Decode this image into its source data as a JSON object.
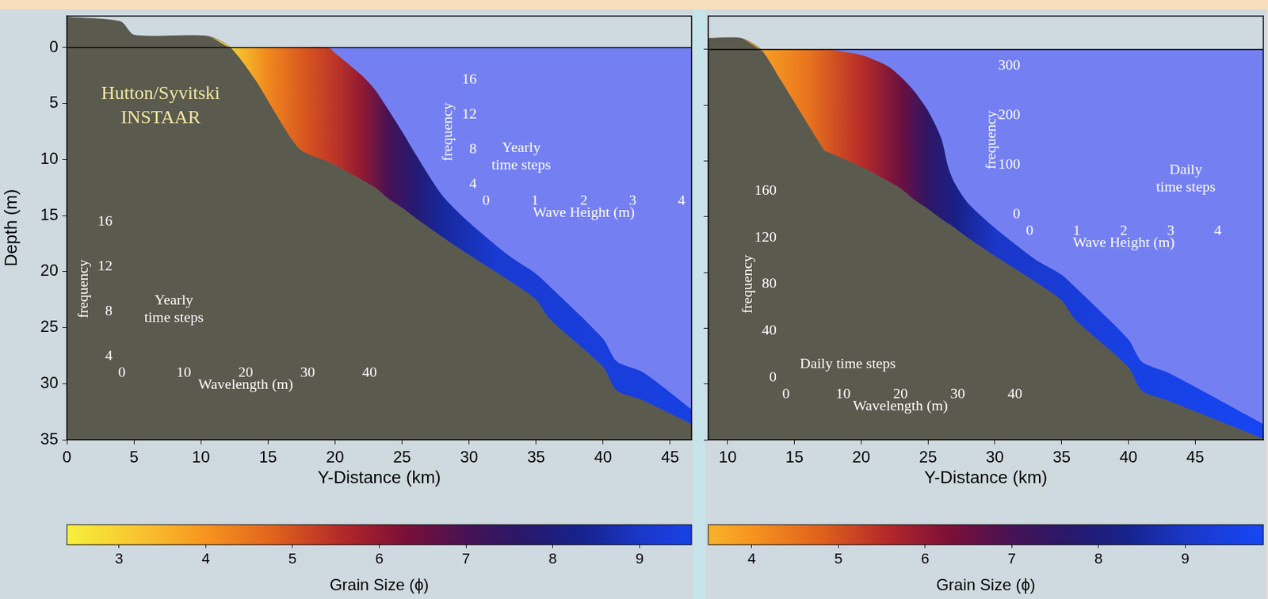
{
  "chart_data": [
    {
      "type": "area",
      "xlabel": "Y-Distance (km)",
      "ylabel": "Depth (m)",
      "xlim": [
        0,
        46.6
      ],
      "xticks": [
        0,
        5,
        10,
        15,
        20,
        25,
        30,
        35,
        40,
        45
      ],
      "ylim": [
        35,
        -2.8
      ],
      "yticks": [
        0,
        5,
        10,
        15,
        20,
        25,
        30,
        35
      ],
      "grid": false,
      "sea_level": 0,
      "x": [
        0,
        4,
        5,
        10.5,
        12.2,
        14,
        17.3,
        19.5,
        20,
        22,
        23,
        24,
        25,
        26,
        28,
        30,
        33,
        35,
        36,
        40,
        41,
        43,
        46.6
      ],
      "series": [
        {
          "values": [
            -2.7,
            -2.3,
            -1.1,
            -1,
            0,
            0,
            0,
            0,
            0.5,
            2.5,
            3.8,
            5.6,
            7.5,
            9.5,
            13.2,
            15.6,
            18.6,
            20.2,
            21.3,
            26,
            28,
            29,
            32.3
          ]
        },
        {
          "values": [
            -2.7,
            -2.3,
            -1.1,
            -1,
            0,
            2.8,
            9,
            10.2,
            10.5,
            11.8,
            12.5,
            13.5,
            14.3,
            15.2,
            16.9,
            18.5,
            20.8,
            22.5,
            24.2,
            28.5,
            30.6,
            31.5,
            33.6
          ],
          "color": "#5b5a4f"
        }
      ],
      "grain_size": {
        "x": [
          12.2,
          15,
          18,
          20,
          22,
          24,
          26,
          28,
          32,
          46.6
        ],
        "values": [
          3,
          4.2,
          5,
          5.4,
          6,
          7,
          7.8,
          8.5,
          9.2,
          9.5
        ]
      },
      "colorbar": {
        "label": "Grain Size (ϕ)",
        "lim": [
          2.4,
          9.6
        ],
        "ticks": [
          3,
          4,
          5,
          6,
          7,
          8,
          9
        ]
      },
      "annotations": [
        "Hutton/Syvitski",
        "INSTAAR"
      ],
      "insets": [
        {
          "type": "histogram",
          "title": "Yearly time steps",
          "xlabel": "Wave Height (m)",
          "ylabel": "frequency",
          "xlim": [
            0,
            4
          ],
          "xticks": [
            0,
            1,
            2,
            3,
            4
          ],
          "ylim": [
            4,
            16
          ],
          "yticks": [
            4,
            8,
            12,
            16
          ]
        },
        {
          "type": "histogram",
          "title": "Yearly time steps",
          "xlabel": "Wavelength (m)",
          "ylabel": "frequency",
          "xlim": [
            0,
            40
          ],
          "xticks": [
            0,
            10,
            20,
            30,
            40
          ],
          "ylim": [
            4,
            16
          ],
          "yticks": [
            4,
            8,
            12,
            16
          ]
        }
      ]
    },
    {
      "type": "area",
      "xlabel": "Y-Distance (km)",
      "xlim": [
        8.55,
        50.1
      ],
      "xticks": [
        10,
        15,
        20,
        25,
        30,
        35,
        40,
        45
      ],
      "ylim": [
        35,
        -3
      ],
      "yticks": [
        0,
        5,
        10,
        15,
        20,
        25,
        30,
        35
      ],
      "grid": false,
      "tick_labels": "x",
      "sea_level": 0,
      "x": [
        8.55,
        11,
        12.5,
        14,
        17.2,
        17.5,
        20,
        22,
        23,
        24,
        25,
        26,
        26.5,
        27,
        28,
        30,
        33,
        35,
        36,
        40,
        41,
        43,
        50.1
      ],
      "series": [
        {
          "values": [
            -1,
            -1,
            0,
            0,
            0,
            0,
            0.5,
            1.5,
            2.5,
            3.8,
            5.5,
            8,
            10.5,
            12,
            13.8,
            16,
            18.8,
            20.2,
            21.3,
            26,
            28,
            29,
            33.6
          ]
        },
        {
          "values": [
            -1,
            -1,
            0,
            2.8,
            9,
            9.2,
            10.5,
            11.8,
            12.5,
            13.5,
            14.3,
            15.2,
            15.6,
            16,
            16.9,
            18.5,
            20.8,
            22.5,
            24.2,
            28.5,
            30.6,
            31.5,
            34.9
          ],
          "color": "#5b5a4f"
        }
      ],
      "grain_size": {
        "x": [
          12.5,
          16,
          20,
          23,
          25,
          27,
          30,
          40,
          50.1
        ],
        "values": [
          3.8,
          4.5,
          5.5,
          6.5,
          7.5,
          8.2,
          9,
          9.5,
          9.8
        ]
      },
      "colorbar": {
        "label": "Grain Size (ϕ)",
        "lim": [
          3.5,
          9.9
        ],
        "ticks": [
          4,
          5,
          6,
          7,
          8,
          9
        ]
      },
      "insets": [
        {
          "type": "histogram",
          "title": "Daily time steps",
          "xlabel": "Wave Height (m)",
          "ylabel": "frequency",
          "xlim": [
            0,
            4
          ],
          "xticks": [
            0,
            1,
            2,
            3,
            4
          ],
          "ylim": [
            0,
            300
          ],
          "yticks": [
            0,
            100,
            200,
            300
          ]
        },
        {
          "type": "histogram",
          "title": "Daily time steps",
          "xlabel": "Wavelength (m)",
          "ylabel": "frequency",
          "xlim": [
            0,
            40
          ],
          "xticks": [
            0,
            10,
            20,
            30,
            40
          ],
          "ylim": [
            0,
            160
          ],
          "yticks": [
            0,
            40,
            80,
            120,
            160
          ]
        }
      ]
    }
  ]
}
